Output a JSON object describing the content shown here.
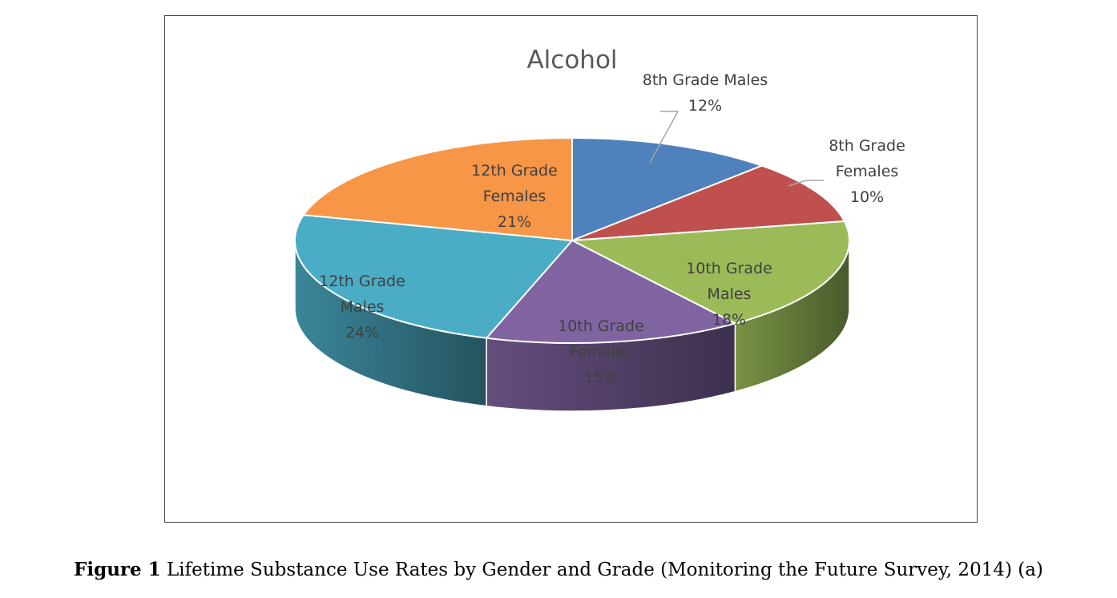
{
  "chart_data": {
    "type": "pie",
    "title": "Alcohol",
    "three_d": true,
    "slices": [
      {
        "label": "8th Grade Males",
        "label_lines": [
          "8th Grade Males"
        ],
        "value": 12,
        "value_label": "12%",
        "color": "#4f81bd"
      },
      {
        "label": "8th Grade Females",
        "label_lines": [
          "8th Grade",
          "Females"
        ],
        "value": 10,
        "value_label": "10%",
        "color": "#c0504d"
      },
      {
        "label": "10th Grade Males",
        "label_lines": [
          "10th Grade",
          "Males"
        ],
        "value": 18,
        "value_label": "18%",
        "color": "#9bbb59"
      },
      {
        "label": "10th Grade Females",
        "label_lines": [
          "10th Grade",
          "Females"
        ],
        "value": 15,
        "value_label": "15%",
        "color": "#8064a2"
      },
      {
        "label": "12th Grade Males",
        "label_lines": [
          "12th Grade",
          "Males"
        ],
        "value": 24,
        "value_label": "24%",
        "color": "#4bacc6"
      },
      {
        "label": "12th Grade Females",
        "label_lines": [
          "12th Grade",
          "Females"
        ],
        "value": 21,
        "value_label": "21%",
        "color": "#f79646"
      }
    ]
  },
  "caption": {
    "prefix": "Figure 1",
    "text": " Lifetime Substance Use Rates by Gender and Grade (Monitoring the Future Survey, 2014) (a)"
  }
}
